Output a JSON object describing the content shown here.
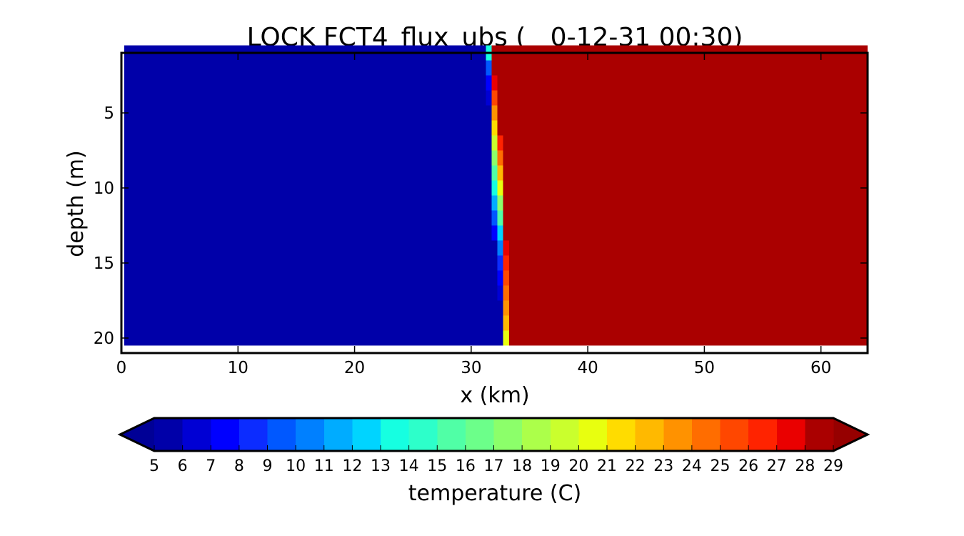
{
  "chart_data": {
    "type": "heatmap",
    "title": "LOCK FCT4_flux_ubs (   0-12-31 00:30)",
    "xlabel": "x (km)",
    "ylabel": "depth (m)",
    "xlim": [
      0,
      64
    ],
    "ylim": [
      21,
      1
    ],
    "y_inverted": true,
    "x_ticks": [
      "0",
      "10",
      "20",
      "30",
      "40",
      "50",
      "60"
    ],
    "y_ticks": [
      "5",
      "10",
      "15",
      "20"
    ],
    "cell_width_km": 0.5,
    "depth_levels": [
      1,
      2,
      3,
      4,
      5,
      6,
      7,
      8,
      9,
      10,
      11,
      12,
      13,
      14,
      15,
      16,
      17,
      18,
      19,
      20
    ],
    "background_left_temperature": 5,
    "background_right_temperature": 29,
    "front_cells": [
      {
        "depth": 1,
        "x": 31.5,
        "temperature": 13
      },
      {
        "depth": 2,
        "x": 31.5,
        "temperature": 9
      },
      {
        "depth": 2,
        "x": 32.0,
        "temperature": 28
      },
      {
        "depth": 3,
        "x": 31.5,
        "temperature": 7
      },
      {
        "depth": 3,
        "x": 32.0,
        "temperature": 27
      },
      {
        "depth": 4,
        "x": 31.5,
        "temperature": 6
      },
      {
        "depth": 4,
        "x": 32.0,
        "temperature": 25
      },
      {
        "depth": 5,
        "x": 31.5,
        "temperature": 5
      },
      {
        "depth": 5,
        "x": 32.0,
        "temperature": 23
      },
      {
        "depth": 6,
        "x": 32.0,
        "temperature": 21
      },
      {
        "depth": 6,
        "x": 32.5,
        "temperature": 28
      },
      {
        "depth": 7,
        "x": 32.0,
        "temperature": 19
      },
      {
        "depth": 7,
        "x": 32.5,
        "temperature": 26
      },
      {
        "depth": 8,
        "x": 32.0,
        "temperature": 17
      },
      {
        "depth": 8,
        "x": 32.5,
        "temperature": 24
      },
      {
        "depth": 9,
        "x": 32.0,
        "temperature": 15
      },
      {
        "depth": 9,
        "x": 32.5,
        "temperature": 22
      },
      {
        "depth": 10,
        "x": 32.0,
        "temperature": 13
      },
      {
        "depth": 10,
        "x": 32.5,
        "temperature": 20
      },
      {
        "depth": 11,
        "x": 32.0,
        "temperature": 11
      },
      {
        "depth": 11,
        "x": 32.5,
        "temperature": 17
      },
      {
        "depth": 12,
        "x": 32.0,
        "temperature": 9
      },
      {
        "depth": 12,
        "x": 32.5,
        "temperature": 15
      },
      {
        "depth": 13,
        "x": 32.0,
        "temperature": 7
      },
      {
        "depth": 13,
        "x": 32.5,
        "temperature": 12
      },
      {
        "depth": 14,
        "x": 32.5,
        "temperature": 10
      },
      {
        "depth": 14,
        "x": 33.0,
        "temperature": 27
      },
      {
        "depth": 15,
        "x": 32.5,
        "temperature": 8
      },
      {
        "depth": 15,
        "x": 33.0,
        "temperature": 26
      },
      {
        "depth": 16,
        "x": 32.5,
        "temperature": 7
      },
      {
        "depth": 16,
        "x": 33.0,
        "temperature": 25
      },
      {
        "depth": 17,
        "x": 32.5,
        "temperature": 6
      },
      {
        "depth": 17,
        "x": 33.0,
        "temperature": 24
      },
      {
        "depth": 18,
        "x": 33.0,
        "temperature": 23
      },
      {
        "depth": 19,
        "x": 33.0,
        "temperature": 22
      },
      {
        "depth": 20,
        "x": 33.0,
        "temperature": 20
      }
    ],
    "colorbar": {
      "label": "temperature (C)",
      "ticks": [
        "5",
        "6",
        "7",
        "8",
        "9",
        "10",
        "11",
        "12",
        "13",
        "14",
        "15",
        "16",
        "17",
        "18",
        "19",
        "20",
        "21",
        "22",
        "23",
        "24",
        "25",
        "26",
        "27",
        "28",
        "29"
      ],
      "extend": "both",
      "colors": [
        "#0000a9",
        "#0000d4",
        "#0000ff",
        "#0c2cff",
        "#0058ff",
        "#0080ff",
        "#00acff",
        "#00d4ff",
        "#16ffe1",
        "#2dffca",
        "#50ffa6",
        "#6cff8a",
        "#8cff6a",
        "#acff4a",
        "#caff2d",
        "#e8ff0f",
        "#ffdc00",
        "#ffb900",
        "#ff9200",
        "#ff6d00",
        "#ff4700",
        "#ff2300",
        "#ea0000",
        "#aa0000"
      ],
      "under_color": "#000096",
      "over_color": "#960000"
    }
  }
}
